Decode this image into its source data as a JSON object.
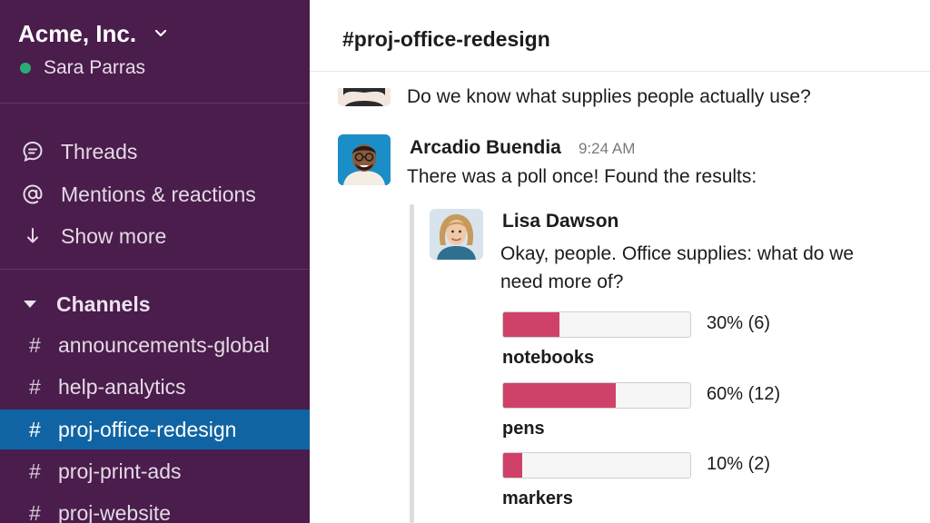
{
  "workspace": {
    "name": "Acme, Inc.",
    "user": "Sara Parras",
    "presence_color": "#2bac76",
    "chevron_icon": "chevron-down-icon"
  },
  "sidebar": {
    "nav": [
      {
        "label": "Threads",
        "icon": "threads-icon"
      },
      {
        "label": "Mentions & reactions",
        "icon": "at-sign-icon"
      },
      {
        "label": "Show more",
        "icon": "arrow-down-icon"
      }
    ],
    "channels_header": "Channels",
    "channel_prefix": "#",
    "channels": [
      {
        "name": "announcements-global",
        "active": false
      },
      {
        "name": "help-analytics",
        "active": false
      },
      {
        "name": "proj-office-redesign",
        "active": true
      },
      {
        "name": "proj-print-ads",
        "active": false
      },
      {
        "name": "proj-website",
        "active": false
      }
    ],
    "background_color": "#4a1d4c",
    "active_color": "#1164a3"
  },
  "channel": {
    "title": "#proj-office-redesign"
  },
  "messages": {
    "previous": {
      "text": "Do we know what supplies people actually use?"
    },
    "current": {
      "sender": "Arcadio Buendia",
      "time": "9:24 AM",
      "text": "There was a poll once! Found the results:"
    }
  },
  "poll": {
    "author": "Lisa Dawson",
    "question": "Okay, people. Office supplies: what do we need more of?",
    "bar_color": "#d0416a",
    "options": [
      {
        "label": "notebooks",
        "percent": 30,
        "result": "30% (6)"
      },
      {
        "label": "pens",
        "percent": 60,
        "result": "60% (12)"
      },
      {
        "label": "markers",
        "percent": 10,
        "result": "10% (2)"
      }
    ]
  }
}
